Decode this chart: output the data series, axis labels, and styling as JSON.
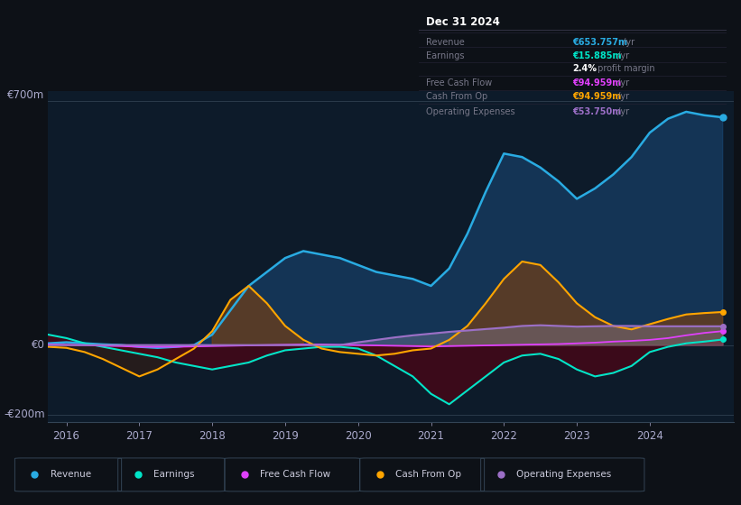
{
  "bg_color": "#0d1117",
  "plot_bg_color": "#0d1b2a",
  "ylabel_700": "€700m",
  "ylabel_0": "€0",
  "ylabel_neg200": "-€200m",
  "legend": [
    {
      "label": "Revenue",
      "color": "#29abe2"
    },
    {
      "label": "Earnings",
      "color": "#00e5c8"
    },
    {
      "label": "Free Cash Flow",
      "color": "#e040fb"
    },
    {
      "label": "Cash From Op",
      "color": "#ffa500"
    },
    {
      "label": "Operating Expenses",
      "color": "#9c6fc7"
    }
  ],
  "x_years": [
    2015.75,
    2016.0,
    2016.25,
    2016.5,
    2016.75,
    2017.0,
    2017.25,
    2017.5,
    2017.75,
    2018.0,
    2018.25,
    2018.5,
    2018.75,
    2019.0,
    2019.25,
    2019.5,
    2019.75,
    2020.0,
    2020.25,
    2020.5,
    2020.75,
    2021.0,
    2021.25,
    2021.5,
    2021.75,
    2022.0,
    2022.25,
    2022.5,
    2022.75,
    2023.0,
    2023.25,
    2023.5,
    2023.75,
    2024.0,
    2024.25,
    2024.5,
    2024.75,
    2025.0
  ],
  "revenue": [
    5,
    8,
    5,
    2,
    0,
    -5,
    -8,
    -5,
    0,
    30,
    100,
    170,
    210,
    250,
    270,
    260,
    250,
    230,
    210,
    200,
    190,
    170,
    220,
    320,
    440,
    550,
    540,
    510,
    470,
    420,
    450,
    490,
    540,
    610,
    650,
    670,
    660,
    654
  ],
  "earnings": [
    30,
    20,
    5,
    -5,
    -15,
    -25,
    -35,
    -50,
    -60,
    -70,
    -60,
    -50,
    -30,
    -15,
    -10,
    -5,
    -5,
    -10,
    -30,
    -60,
    -90,
    -140,
    -170,
    -130,
    -90,
    -50,
    -30,
    -25,
    -40,
    -70,
    -90,
    -80,
    -60,
    -20,
    -5,
    5,
    10,
    16
  ],
  "free_cash_flow": [
    2,
    1,
    0,
    -2,
    -3,
    -5,
    -5,
    -5,
    -4,
    -3,
    -2,
    -1,
    0,
    1,
    2,
    2,
    1,
    0,
    -1,
    -2,
    -3,
    -4,
    -3,
    -2,
    -1,
    0,
    1,
    2,
    3,
    5,
    7,
    10,
    12,
    15,
    20,
    28,
    35,
    40
  ],
  "cash_from_op": [
    -5,
    -8,
    -20,
    -40,
    -65,
    -90,
    -70,
    -40,
    -10,
    40,
    130,
    170,
    120,
    55,
    15,
    -10,
    -20,
    -25,
    -30,
    -25,
    -15,
    -10,
    15,
    55,
    120,
    190,
    240,
    230,
    180,
    120,
    80,
    55,
    45,
    60,
    75,
    88,
    92,
    95
  ],
  "operating_expenses": [
    0,
    0,
    0,
    0,
    0,
    0,
    0,
    0,
    0,
    0,
    0,
    0,
    0,
    0,
    0,
    0,
    0,
    8,
    15,
    22,
    28,
    33,
    38,
    42,
    46,
    50,
    55,
    57,
    55,
    53,
    54,
    55,
    55,
    54,
    54,
    54,
    54,
    54
  ],
  "ylim": [
    -220,
    730
  ],
  "xlim": [
    2015.75,
    2025.15
  ]
}
